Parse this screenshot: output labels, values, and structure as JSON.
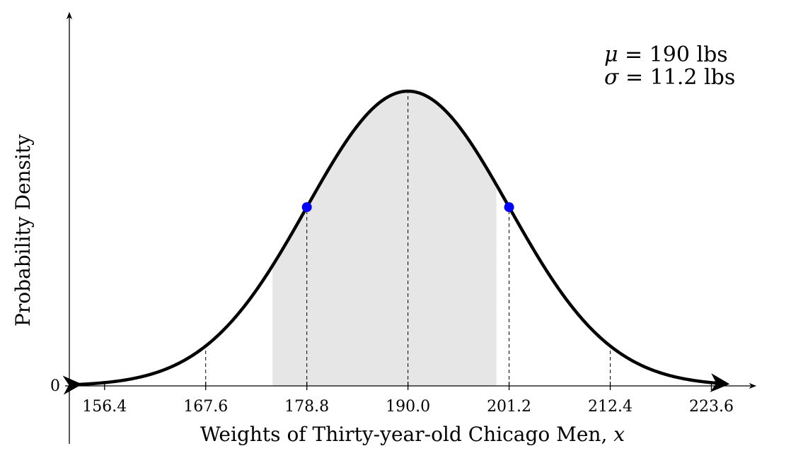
{
  "chart_data": {
    "type": "area",
    "distribution": "normal",
    "title": "",
    "mu": 190,
    "sigma": 11.2,
    "xlabel": "Weights of Thirty-year-old Chicago Men, x",
    "xlabel_text": "Weights of Thirty-year-old Chicago Men, ",
    "xlabel_var": "x",
    "ylabel": "Probability Density",
    "y_tick_label": "0",
    "x_ticks": [
      156.4,
      167.6,
      178.8,
      190.0,
      201.2,
      212.4,
      223.6
    ],
    "x_tick_labels": [
      "156.4",
      "167.6",
      "178.8",
      "190.0",
      "201.2",
      "212.4",
      "223.6"
    ],
    "xlim": [
      152.5,
      228.5
    ],
    "curve_range": [
      153.5,
      225.2
    ],
    "shaded_interval": [
      175.0,
      199.8
    ],
    "inflection_points": [
      178.8,
      201.2
    ],
    "dashed_lines_at": [
      167.6,
      178.8,
      190.0,
      201.2,
      212.4
    ],
    "annotations": {
      "mu_symbol": "μ",
      "mu_rest": " = 190 lbs",
      "sigma_symbol": "σ",
      "sigma_rest": " = 11.2 lbs"
    },
    "colors": {
      "curve": "#000000",
      "shade": "#e6e6e6",
      "inflection_marker": "#0000ff",
      "axis": "#000000"
    }
  }
}
